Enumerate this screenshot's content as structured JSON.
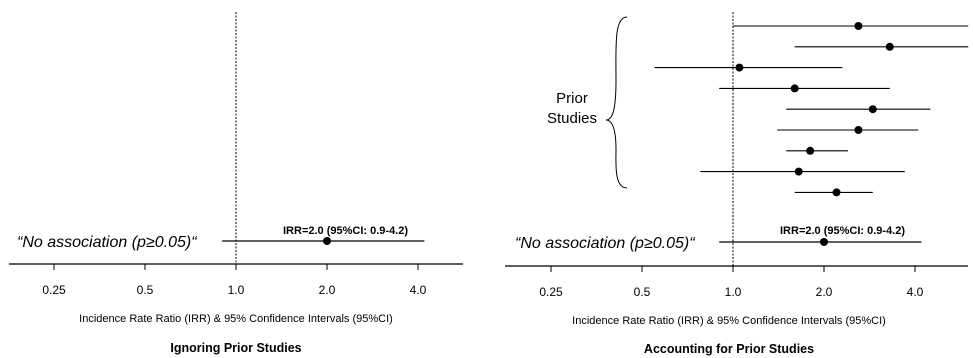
{
  "chart_data": [
    {
      "type": "scatter",
      "title": "Ignoring Prior Studies",
      "xlabel": "Incidence Rate Ratio (IRR) & 95% Confidence Intervals (95%CI)",
      "x_scale": "log2",
      "xlim": [
        0.18,
        6.0
      ],
      "x_ticks": [
        {
          "value": 0.25,
          "label": "0.25"
        },
        {
          "value": 0.5,
          "label": "0.5"
        },
        {
          "value": 1.0,
          "label": "1.0"
        },
        {
          "value": 2.0,
          "label": "2.0"
        },
        {
          "value": 4.0,
          "label": "4.0"
        }
      ],
      "reference_line": 1.0,
      "result_annotation": "“No association (p≥0.05)“",
      "estimate_label": "IRR=2.0 (95%CI: 0.9-4.2)",
      "main_estimate": {
        "irr": 2.0,
        "lower": 0.9,
        "upper": 4.2
      },
      "prior_studies": []
    },
    {
      "type": "scatter",
      "title": "Accounting for Prior Studies",
      "xlabel": "Incidence Rate Ratio (IRR) & 95% Confidence Intervals (95%CI)",
      "x_scale": "log2",
      "xlim": [
        0.18,
        4.8
      ],
      "x_ticks": [
        {
          "value": 0.25,
          "label": "0.25"
        },
        {
          "value": 0.5,
          "label": "0.5"
        },
        {
          "value": 1.0,
          "label": "1.0"
        },
        {
          "value": 2.0,
          "label": "2.0"
        },
        {
          "value": 4.0,
          "label": "4.0"
        }
      ],
      "reference_line": 1.0,
      "result_annotation": "“No association (p≥0.05)“",
      "estimate_label": "IRR=2.0 (95%CI: 0.9-4.2)",
      "brace_label": [
        "Prior",
        "Studies"
      ],
      "main_estimate": {
        "irr": 2.0,
        "lower": 0.9,
        "upper": 4.2
      },
      "prior_studies": [
        {
          "irr": 2.6,
          "lower": 1.0,
          "upper": 6.0
        },
        {
          "irr": 3.3,
          "lower": 1.6,
          "upper": 6.0
        },
        {
          "irr": 1.05,
          "lower": 0.55,
          "upper": 2.3
        },
        {
          "irr": 1.6,
          "lower": 0.9,
          "upper": 3.3
        },
        {
          "irr": 2.9,
          "lower": 1.5,
          "upper": 4.5
        },
        {
          "irr": 2.6,
          "lower": 1.4,
          "upper": 4.1
        },
        {
          "irr": 1.8,
          "lower": 1.5,
          "upper": 2.4
        },
        {
          "irr": 1.65,
          "lower": 0.78,
          "upper": 3.7
        },
        {
          "irr": 2.2,
          "lower": 1.6,
          "upper": 2.9
        }
      ]
    }
  ]
}
